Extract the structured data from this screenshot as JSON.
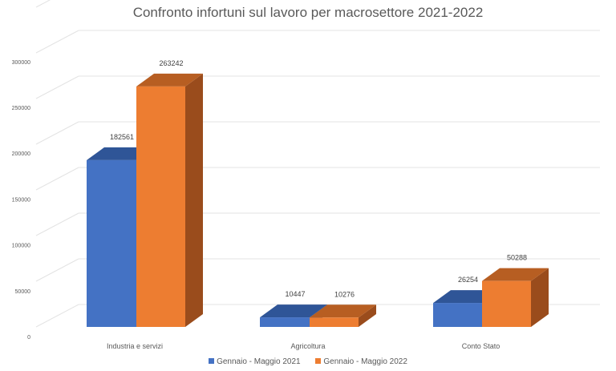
{
  "chart_data": {
    "type": "bar",
    "title": "Confronto infortuni sul lavoro per macrosettore 2021-2022",
    "categories": [
      "Industria e servizi",
      "Agricoltura",
      "Conto Stato"
    ],
    "series": [
      {
        "name": "Gennaio - Maggio 2021",
        "values": [
          182561,
          10447,
          26254
        ],
        "color": "#4472C4"
      },
      {
        "name": "Gennaio - Maggio 2022",
        "values": [
          263242,
          10276,
          50288
        ],
        "color": "#ED7D31"
      }
    ],
    "yticks": [
      "0",
      "50000",
      "100000",
      "150000",
      "200000",
      "250000",
      "300000"
    ],
    "ylim": [
      0,
      350000
    ],
    "grid": true,
    "style": "3d-column",
    "legend": "bottom"
  }
}
